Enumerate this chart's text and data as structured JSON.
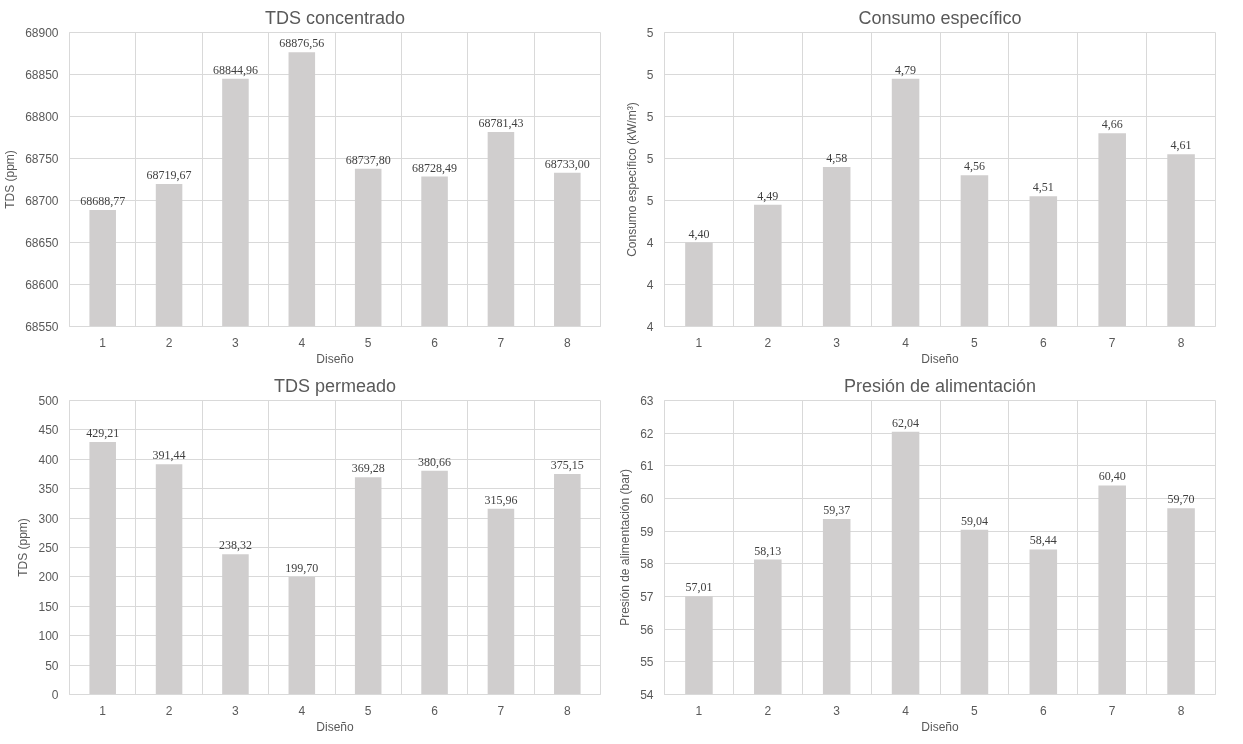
{
  "chart_data": [
    {
      "type": "bar",
      "title": "TDS concentrado",
      "xlabel": "Diseño",
      "ylabel": "TDS (ppm)",
      "categories": [
        "1",
        "2",
        "3",
        "4",
        "5",
        "6",
        "7",
        "8"
      ],
      "values": [
        68688.77,
        68719.67,
        68844.96,
        68876.56,
        68737.8,
        68728.49,
        68781.43,
        68733.0
      ],
      "value_labels": [
        "68688,77",
        "68719,67",
        "68844,96",
        "68876,56",
        "68737,80",
        "68728,49",
        "68781,43",
        "68733,00"
      ],
      "color": "#d0cece",
      "ylim": [
        68550,
        68900
      ],
      "yticks": [
        68550,
        68600,
        68650,
        68700,
        68750,
        68800,
        68850,
        68900
      ],
      "grid": true
    },
    {
      "type": "bar",
      "title": "Consumo específico",
      "xlabel": "Diseño",
      "ylabel": "Consumo específico (kW/m³)",
      "categories": [
        "1",
        "2",
        "3",
        "4",
        "5",
        "6",
        "7",
        "8"
      ],
      "values": [
        4.4,
        4.49,
        4.58,
        4.79,
        4.56,
        4.51,
        4.66,
        4.61
      ],
      "value_labels": [
        "4,40",
        "4,49",
        "4,58",
        "4,79",
        "4,56",
        "4,51",
        "4,66",
        "4,61"
      ],
      "color": "#d0cece",
      "ylim": [
        4.2,
        4.9
      ],
      "yticks": [
        {
          "value": 4.2,
          "label": "4"
        },
        {
          "value": 4.3,
          "label": "4"
        },
        {
          "value": 4.4,
          "label": "4"
        },
        {
          "value": 4.5,
          "label": "5"
        },
        {
          "value": 4.6,
          "label": "5"
        },
        {
          "value": 4.7,
          "label": "5"
        },
        {
          "value": 4.8,
          "label": "5"
        },
        {
          "value": 4.9,
          "label": "5"
        }
      ],
      "grid": true
    },
    {
      "type": "bar",
      "title": "TDS permeado",
      "xlabel": "Diseño",
      "ylabel": "TDS (ppm)",
      "categories": [
        "1",
        "2",
        "3",
        "4",
        "5",
        "6",
        "7",
        "8"
      ],
      "values": [
        429.21,
        391.44,
        238.32,
        199.7,
        369.28,
        380.66,
        315.96,
        375.15
      ],
      "value_labels": [
        "429,21",
        "391,44",
        "238,32",
        "199,70",
        "369,28",
        "380,66",
        "315,96",
        "375,15"
      ],
      "color": "#d0cece",
      "ylim": [
        0,
        500
      ],
      "yticks": [
        0,
        50,
        100,
        150,
        200,
        250,
        300,
        350,
        400,
        450,
        500
      ],
      "grid": true
    },
    {
      "type": "bar",
      "title": "Presión de alimentación",
      "xlabel": "Diseño",
      "ylabel": "Presión de alimentación (bar)",
      "categories": [
        "1",
        "2",
        "3",
        "4",
        "5",
        "6",
        "7",
        "8"
      ],
      "values": [
        57.01,
        58.13,
        59.37,
        62.04,
        59.04,
        58.44,
        60.4,
        59.7
      ],
      "value_labels": [
        "57,01",
        "58,13",
        "59,37",
        "62,04",
        "59,04",
        "58,44",
        "60,40",
        "59,70"
      ],
      "color": "#d0cece",
      "ylim": [
        54,
        63
      ],
      "yticks": [
        54,
        55,
        56,
        57,
        58,
        59,
        60,
        61,
        62,
        63
      ],
      "grid": true
    }
  ]
}
